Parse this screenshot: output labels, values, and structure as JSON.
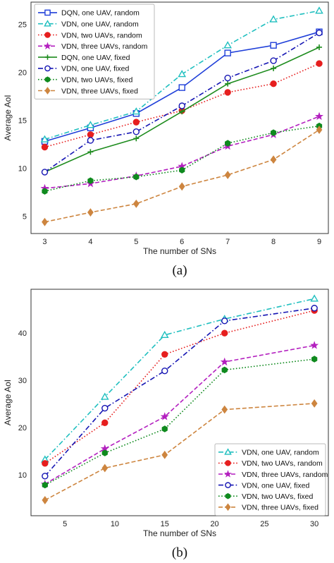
{
  "chart_data": [
    {
      "type": "line",
      "caption": "(a)",
      "xlabel": "The number of SNs",
      "ylabel": "Average AoI",
      "x": [
        3,
        4,
        5,
        6,
        7,
        8,
        9
      ],
      "xticks": [
        3,
        4,
        5,
        6,
        7,
        8,
        9
      ],
      "yticks": [
        5,
        10,
        15,
        20,
        25
      ],
      "xlim": [
        2.7,
        9.2
      ],
      "ylim": [
        3.2,
        27.3
      ],
      "grid": false,
      "legend_position": "top-left",
      "series": [
        {
          "name": "DQN, one UAV, random",
          "values": [
            12.8,
            14.2,
            15.7,
            18.4,
            22.0,
            22.8,
            24.2
          ],
          "color": "#1f3fd9",
          "dash": "solid",
          "marker": "square-open"
        },
        {
          "name": "VDN, one UAV, random",
          "values": [
            13.0,
            14.5,
            15.9,
            19.8,
            22.8,
            25.5,
            26.4
          ],
          "color": "#1fbfbf",
          "dash": "dashdot",
          "marker": "triangle-open"
        },
        {
          "name": "VDN, two UAVs, random",
          "values": [
            12.2,
            13.5,
            14.8,
            16.0,
            17.9,
            18.8,
            20.9
          ],
          "color": "#e61e1e",
          "dash": "dotted",
          "marker": "circle-filled"
        },
        {
          "name": "VDN, three UAVs, random",
          "values": [
            7.9,
            8.4,
            9.2,
            10.2,
            12.3,
            13.5,
            15.4
          ],
          "color": "#b31fbf",
          "dash": "dashed",
          "marker": "star"
        },
        {
          "name": "DQN, one UAV, fixed",
          "values": [
            9.6,
            11.7,
            13.1,
            15.9,
            18.8,
            20.4,
            22.6
          ],
          "color": "#1e8c1e",
          "dash": "solid",
          "marker": "plus"
        },
        {
          "name": "VDN, one UAV, fixed",
          "values": [
            9.6,
            12.9,
            13.8,
            16.5,
            19.4,
            21.2,
            24.1
          ],
          "color": "#1414b3",
          "dash": "dashdot",
          "marker": "circle-open"
        },
        {
          "name": "VDN, two UAVs, fixed",
          "values": [
            7.6,
            8.7,
            9.1,
            9.8,
            12.6,
            13.7,
            14.4
          ],
          "color": "#0f8a1e",
          "dash": "dotted",
          "marker": "hexagon-filled"
        },
        {
          "name": "VDN, three UAVs, fixed",
          "values": [
            4.4,
            5.4,
            6.3,
            8.1,
            9.3,
            10.9,
            14.0
          ],
          "color": "#cd853f",
          "dash": "dashed",
          "marker": "diamond-filled"
        }
      ]
    },
    {
      "type": "line",
      "caption": "(b)",
      "xlabel": "The number of SNs",
      "ylabel": "Average AoI",
      "x": [
        3,
        9,
        15,
        21,
        30
      ],
      "xticks": [
        5,
        10,
        15,
        20,
        25,
        30
      ],
      "yticks": [
        10,
        20,
        30,
        40
      ],
      "xlim": [
        1.6,
        31.4
      ],
      "ylim": [
        1.3,
        49.3
      ],
      "grid": false,
      "legend_position": "bottom-right",
      "series": [
        {
          "name": "VDN, one UAV, random",
          "values": [
            13.2,
            26.5,
            39.6,
            43.0,
            47.3
          ],
          "color": "#1fbfbf",
          "dash": "dashdot",
          "marker": "triangle-open"
        },
        {
          "name": "VDN, two UAVs, random",
          "values": [
            12.4,
            21.0,
            35.5,
            40.0,
            44.8
          ],
          "color": "#e61e1e",
          "dash": "dotted",
          "marker": "circle-filled"
        },
        {
          "name": "VDN, three UAVs, random",
          "values": [
            8.0,
            15.5,
            22.3,
            33.9,
            37.4
          ],
          "color": "#b31fbf",
          "dash": "dashed",
          "marker": "star"
        },
        {
          "name": "VDN, one UAV, fixed",
          "values": [
            9.7,
            24.1,
            32.0,
            42.6,
            45.3
          ],
          "color": "#1414b3",
          "dash": "dashdot",
          "marker": "circle-open"
        },
        {
          "name": "VDN, two UAVs, fixed",
          "values": [
            7.8,
            14.6,
            19.7,
            32.2,
            34.5
          ],
          "color": "#0f8a1e",
          "dash": "dotted",
          "marker": "hexagon-filled"
        },
        {
          "name": "VDN, three UAVs, fixed",
          "values": [
            4.6,
            11.4,
            14.2,
            23.8,
            25.1
          ],
          "color": "#cd853f",
          "dash": "dashed",
          "marker": "diamond-filled"
        }
      ]
    }
  ]
}
